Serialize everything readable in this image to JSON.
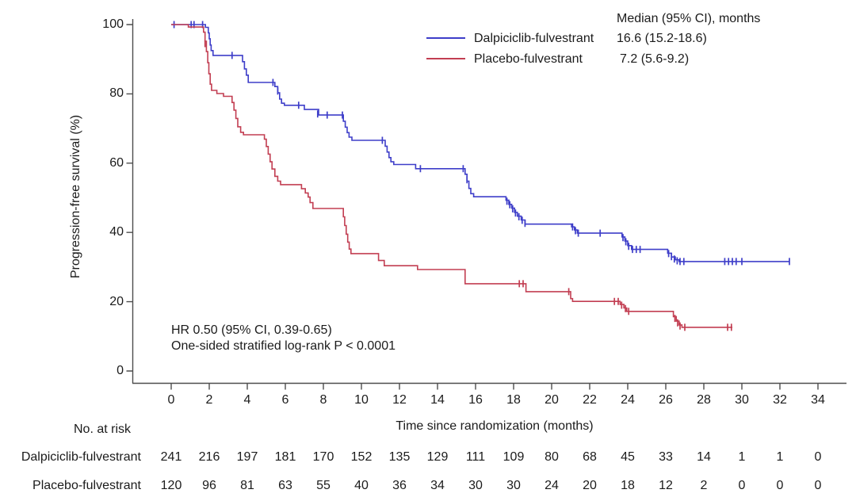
{
  "chart_data": {
    "type": "line",
    "subtype": "kaplan-meier-step-curve",
    "title": "",
    "xlabel": "Time since randomization (months)",
    "ylabel": "Progression-free survival (%)",
    "xlim": [
      0,
      35.5
    ],
    "ylim": [
      0,
      100
    ],
    "x_ticks": [
      0,
      2,
      4,
      6,
      8,
      10,
      12,
      14,
      16,
      18,
      20,
      22,
      24,
      26,
      28,
      30,
      32,
      34
    ],
    "y_ticks": [
      0,
      20,
      40,
      60,
      80,
      100
    ],
    "grid": false,
    "legend": {
      "position": "top-right",
      "header": "Median (95% CI), months"
    },
    "annotations": {
      "line1": "HR 0.50 (95% CI, 0.39-0.65)",
      "line2": "One-sided stratified log-rank P < 0.0001"
    },
    "series": [
      {
        "name": "Dalpiciclib-fulvestrant",
        "color": "#3e3ec9",
        "median_text": "16.6 (15.2-18.6)",
        "steps": [
          [
            0,
            100
          ],
          [
            1.8,
            99.2
          ],
          [
            1.95,
            97.6
          ],
          [
            2.0,
            95.9
          ],
          [
            2.05,
            94.1
          ],
          [
            2.1,
            92.5
          ],
          [
            2.2,
            91.1
          ],
          [
            3.75,
            89.3
          ],
          [
            3.85,
            87.2
          ],
          [
            3.95,
            85.4
          ],
          [
            4.05,
            83.3
          ],
          [
            5.45,
            82.1
          ],
          [
            5.6,
            80.3
          ],
          [
            5.7,
            78.5
          ],
          [
            5.8,
            77.3
          ],
          [
            5.95,
            76.7
          ],
          [
            7.0,
            75.5
          ],
          [
            7.75,
            73.9
          ],
          [
            9.05,
            72.1
          ],
          [
            9.15,
            70.4
          ],
          [
            9.25,
            68.8
          ],
          [
            9.35,
            67.5
          ],
          [
            9.5,
            66.6
          ],
          [
            11.25,
            64.9
          ],
          [
            11.35,
            63.2
          ],
          [
            11.45,
            61.6
          ],
          [
            11.55,
            60.4
          ],
          [
            11.7,
            59.6
          ],
          [
            12.85,
            58.4
          ],
          [
            15.45,
            56.8
          ],
          [
            15.55,
            54.8
          ],
          [
            15.65,
            52.7
          ],
          [
            15.75,
            51.2
          ],
          [
            15.9,
            50.3
          ],
          [
            17.6,
            49.3
          ],
          [
            17.75,
            48.1
          ],
          [
            17.9,
            47.0
          ],
          [
            18.05,
            45.8
          ],
          [
            18.2,
            44.7
          ],
          [
            18.4,
            43.6
          ],
          [
            18.6,
            42.4
          ],
          [
            21.05,
            41.6
          ],
          [
            21.2,
            40.7
          ],
          [
            21.35,
            39.8
          ],
          [
            23.7,
            38.7
          ],
          [
            23.85,
            37.5
          ],
          [
            24.0,
            36.2
          ],
          [
            24.2,
            35.1
          ],
          [
            26.1,
            34.0
          ],
          [
            26.3,
            32.9
          ],
          [
            26.5,
            32.1
          ],
          [
            26.7,
            31.6
          ],
          [
            32.5,
            31.6
          ]
        ],
        "censors": [
          [
            0.15,
            100
          ],
          [
            1.05,
            100
          ],
          [
            1.2,
            100
          ],
          [
            1.65,
            100
          ],
          [
            3.2,
            91.1
          ],
          [
            5.35,
            83.3
          ],
          [
            5.6,
            80.8
          ],
          [
            6.7,
            76.7
          ],
          [
            7.7,
            74.2
          ],
          [
            8.2,
            73.9
          ],
          [
            9.0,
            73.9
          ],
          [
            11.1,
            66.6
          ],
          [
            13.1,
            58.4
          ],
          [
            15.35,
            58.4
          ],
          [
            15.55,
            55.2
          ],
          [
            17.65,
            49.0
          ],
          [
            17.8,
            48.0
          ],
          [
            17.95,
            46.8
          ],
          [
            18.1,
            45.6
          ],
          [
            18.28,
            44.5
          ],
          [
            18.45,
            43.5
          ],
          [
            18.6,
            42.6
          ],
          [
            21.1,
            41.6
          ],
          [
            21.25,
            40.5
          ],
          [
            21.4,
            39.8
          ],
          [
            22.55,
            39.8
          ],
          [
            23.75,
            38.5
          ],
          [
            23.9,
            37.3
          ],
          [
            24.05,
            36.0
          ],
          [
            24.25,
            35.1
          ],
          [
            24.45,
            35.1
          ],
          [
            24.65,
            35.1
          ],
          [
            26.15,
            33.9
          ],
          [
            26.3,
            33.0
          ],
          [
            26.45,
            32.3
          ],
          [
            26.6,
            31.8
          ],
          [
            26.75,
            31.6
          ],
          [
            26.95,
            31.6
          ],
          [
            29.1,
            31.6
          ],
          [
            29.3,
            31.6
          ],
          [
            29.5,
            31.6
          ],
          [
            29.7,
            31.6
          ],
          [
            30.0,
            31.6
          ],
          [
            32.5,
            31.6
          ]
        ]
      },
      {
        "name": "Placebo-fulvestrant",
        "color": "#c23e52",
        "median_text": "7.2 (5.6-9.2)",
        "steps": [
          [
            0,
            100
          ],
          [
            0.9,
            99.3
          ],
          [
            1.7,
            97.8
          ],
          [
            1.78,
            95.2
          ],
          [
            1.85,
            92.2
          ],
          [
            1.92,
            89.0
          ],
          [
            1.98,
            85.8
          ],
          [
            2.05,
            82.8
          ],
          [
            2.12,
            81.0
          ],
          [
            2.4,
            80.1
          ],
          [
            2.75,
            79.3
          ],
          [
            3.2,
            77.5
          ],
          [
            3.3,
            75.3
          ],
          [
            3.4,
            72.9
          ],
          [
            3.5,
            70.5
          ],
          [
            3.65,
            68.9
          ],
          [
            3.8,
            68.2
          ],
          [
            4.9,
            66.9
          ],
          [
            5.0,
            64.8
          ],
          [
            5.1,
            62.6
          ],
          [
            5.2,
            60.4
          ],
          [
            5.3,
            58.3
          ],
          [
            5.45,
            56.2
          ],
          [
            5.6,
            54.8
          ],
          [
            5.75,
            53.8
          ],
          [
            6.85,
            52.6
          ],
          [
            7.05,
            51.4
          ],
          [
            7.2,
            50.2
          ],
          [
            7.3,
            48.6
          ],
          [
            7.45,
            46.9
          ],
          [
            9.05,
            44.5
          ],
          [
            9.12,
            42.0
          ],
          [
            9.2,
            39.5
          ],
          [
            9.28,
            37.2
          ],
          [
            9.36,
            35.2
          ],
          [
            9.45,
            33.9
          ],
          [
            10.9,
            31.9
          ],
          [
            11.2,
            30.4
          ],
          [
            12.95,
            29.3
          ],
          [
            15.45,
            25.2
          ],
          [
            18.65,
            22.9
          ],
          [
            21.0,
            20.9
          ],
          [
            21.1,
            20.1
          ],
          [
            23.6,
            19.2
          ],
          [
            23.8,
            18.2
          ],
          [
            23.95,
            17.2
          ],
          [
            26.4,
            15.7
          ],
          [
            26.55,
            14.4
          ],
          [
            26.7,
            13.3
          ],
          [
            26.85,
            12.6
          ],
          [
            29.5,
            12.6
          ]
        ],
        "censors": [
          [
            1.78,
            94.5
          ],
          [
            18.3,
            25.2
          ],
          [
            18.5,
            25.2
          ],
          [
            20.9,
            22.9
          ],
          [
            23.3,
            20.1
          ],
          [
            23.5,
            20.1
          ],
          [
            23.68,
            19.0
          ],
          [
            23.88,
            18.0
          ],
          [
            24.05,
            17.2
          ],
          [
            26.48,
            15.2
          ],
          [
            26.62,
            13.9
          ],
          [
            26.75,
            13.0
          ],
          [
            27.0,
            12.6
          ],
          [
            29.25,
            12.6
          ],
          [
            29.45,
            12.6
          ]
        ]
      }
    ],
    "risk_table": {
      "label": "No. at risk",
      "time_points": [
        0,
        2,
        4,
        6,
        8,
        10,
        12,
        14,
        16,
        18,
        20,
        22,
        24,
        26,
        28,
        30,
        32,
        34
      ],
      "rows": [
        {
          "name": "Dalpiciclib-fulvestrant",
          "counts": [
            241,
            216,
            197,
            181,
            170,
            152,
            135,
            129,
            111,
            109,
            80,
            68,
            45,
            33,
            14,
            1,
            1,
            0
          ]
        },
        {
          "name": "Placebo-fulvestrant",
          "counts": [
            120,
            96,
            81,
            63,
            55,
            40,
            36,
            34,
            30,
            30,
            24,
            20,
            18,
            12,
            2,
            0,
            0,
            0
          ]
        }
      ]
    },
    "style": {
      "axis_color": "#4d4d4d",
      "text_color": "#1b1b1b",
      "background": "#ffffff"
    }
  }
}
